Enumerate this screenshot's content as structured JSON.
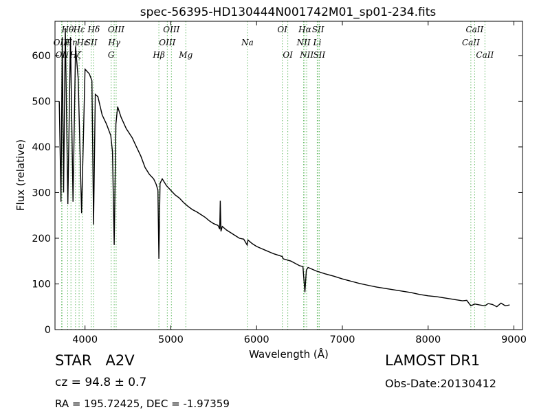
{
  "chart_data": {
    "type": "line",
    "title": "spec-56395-HD130444N001742M01_sp01-234.fits",
    "xlabel": "Wavelength (Å)",
    "ylabel": "Flux (relative)",
    "xlim": [
      3650,
      9100
    ],
    "ylim": [
      0,
      675
    ],
    "xticks": [
      4000,
      5000,
      6000,
      7000,
      8000,
      9000
    ],
    "yticks": [
      0,
      100,
      200,
      300,
      400,
      500,
      600
    ],
    "grid": false,
    "line_color": "#000000",
    "marker_color": "#66bb66",
    "spectrum": {
      "x": [
        3700,
        3720,
        3735,
        3750,
        3770,
        3800,
        3830,
        3860,
        3890,
        3920,
        3960,
        4000,
        4050,
        4080,
        4100,
        4120,
        4150,
        4200,
        4250,
        4300,
        4320,
        4340,
        4360,
        4380,
        4420,
        4480,
        4550,
        4600,
        4650,
        4700,
        4750,
        4800,
        4830,
        4850,
        4861,
        4875,
        4900,
        4950,
        5000,
        5050,
        5100,
        5150,
        5200,
        5250,
        5300,
        5350,
        5400,
        5450,
        5500,
        5550,
        5570,
        5577,
        5585,
        5600,
        5650,
        5700,
        5750,
        5800,
        5850,
        5890,
        5900,
        5950,
        6000,
        6100,
        6200,
        6300,
        6310,
        6400,
        6500,
        6540,
        6563,
        6580,
        6600,
        6700,
        6800,
        6900,
        7000,
        7100,
        7200,
        7300,
        7400,
        7500,
        7600,
        7700,
        7800,
        7900,
        8000,
        8100,
        8200,
        8300,
        8400,
        8450,
        8498,
        8542,
        8600,
        8662,
        8700,
        8750,
        8800,
        8850,
        8900,
        8950
      ],
      "y": [
        500,
        280,
        640,
        300,
        660,
        275,
        640,
        280,
        620,
        550,
        255,
        570,
        560,
        545,
        230,
        515,
        510,
        470,
        450,
        425,
        390,
        185,
        450,
        488,
        465,
        440,
        420,
        400,
        380,
        355,
        340,
        330,
        318,
        305,
        155,
        320,
        330,
        315,
        305,
        295,
        288,
        278,
        270,
        263,
        258,
        252,
        246,
        238,
        232,
        228,
        220,
        282,
        215,
        226,
        218,
        212,
        206,
        200,
        198,
        185,
        196,
        188,
        182,
        174,
        166,
        160,
        155,
        150,
        140,
        138,
        82,
        130,
        136,
        128,
        122,
        117,
        111,
        106,
        101,
        97,
        93,
        90,
        87,
        84,
        81,
        77,
        74,
        72,
        69,
        66,
        63,
        64,
        52,
        56,
        54,
        52,
        57,
        55,
        50,
        58,
        52,
        54
      ]
    },
    "spectral_lines": [
      {
        "label": "OIII",
        "x": 3727,
        "row": 1
      },
      {
        "label": "OII",
        "x": 3732,
        "row": 2
      },
      {
        "label": "Hθ",
        "x": 3798,
        "row": 0
      },
      {
        "label": "Hη",
        "x": 3836,
        "row": 1
      },
      {
        "label": "Hζ",
        "x": 3889,
        "row": 2
      },
      {
        "label": "Hε",
        "x": 3931,
        "row": 0
      },
      {
        "label": "Hε",
        "x": 3970,
        "row": 1
      },
      {
        "label": "SII",
        "x": 4072,
        "row": 1
      },
      {
        "label": "Hδ",
        "x": 4102,
        "row": 0
      },
      {
        "label": "Hγ",
        "x": 4340,
        "row": 1
      },
      {
        "label": "G",
        "x": 4305,
        "row": 2
      },
      {
        "label": "OIII",
        "x": 4363,
        "row": 0
      },
      {
        "label": "Hβ",
        "x": 4861,
        "row": 2
      },
      {
        "label": "OIII",
        "x": 4959,
        "row": 1
      },
      {
        "label": "OIII",
        "x": 5007,
        "row": 0
      },
      {
        "label": "Mg",
        "x": 5175,
        "row": 2
      },
      {
        "label": "Na",
        "x": 5894,
        "row": 1
      },
      {
        "label": "OI",
        "x": 6300,
        "row": 0
      },
      {
        "label": "OI",
        "x": 6364,
        "row": 2
      },
      {
        "label": "NII",
        "x": 6548,
        "row": 1
      },
      {
        "label": "NII",
        "x": 6584,
        "row": 2
      },
      {
        "label": "Hα",
        "x": 6563,
        "row": 0
      },
      {
        "label": "Li",
        "x": 6707,
        "row": 1
      },
      {
        "label": "SII",
        "x": 6717,
        "row": 0
      },
      {
        "label": "SII",
        "x": 6731,
        "row": 2
      },
      {
        "label": "CaII",
        "x": 8498,
        "row": 1
      },
      {
        "label": "CaII",
        "x": 8542,
        "row": 0
      },
      {
        "label": "CaII",
        "x": 8662,
        "row": 2
      }
    ]
  },
  "info": {
    "class_text": "STAR   A2V",
    "survey_text": "LAMOST DR1",
    "cz_text": "cz = 94.8 ± 0.7",
    "obs_date_text": "Obs-Date:20130412",
    "coords_text": "RA = 195.72425, DEC = -1.97359"
  }
}
